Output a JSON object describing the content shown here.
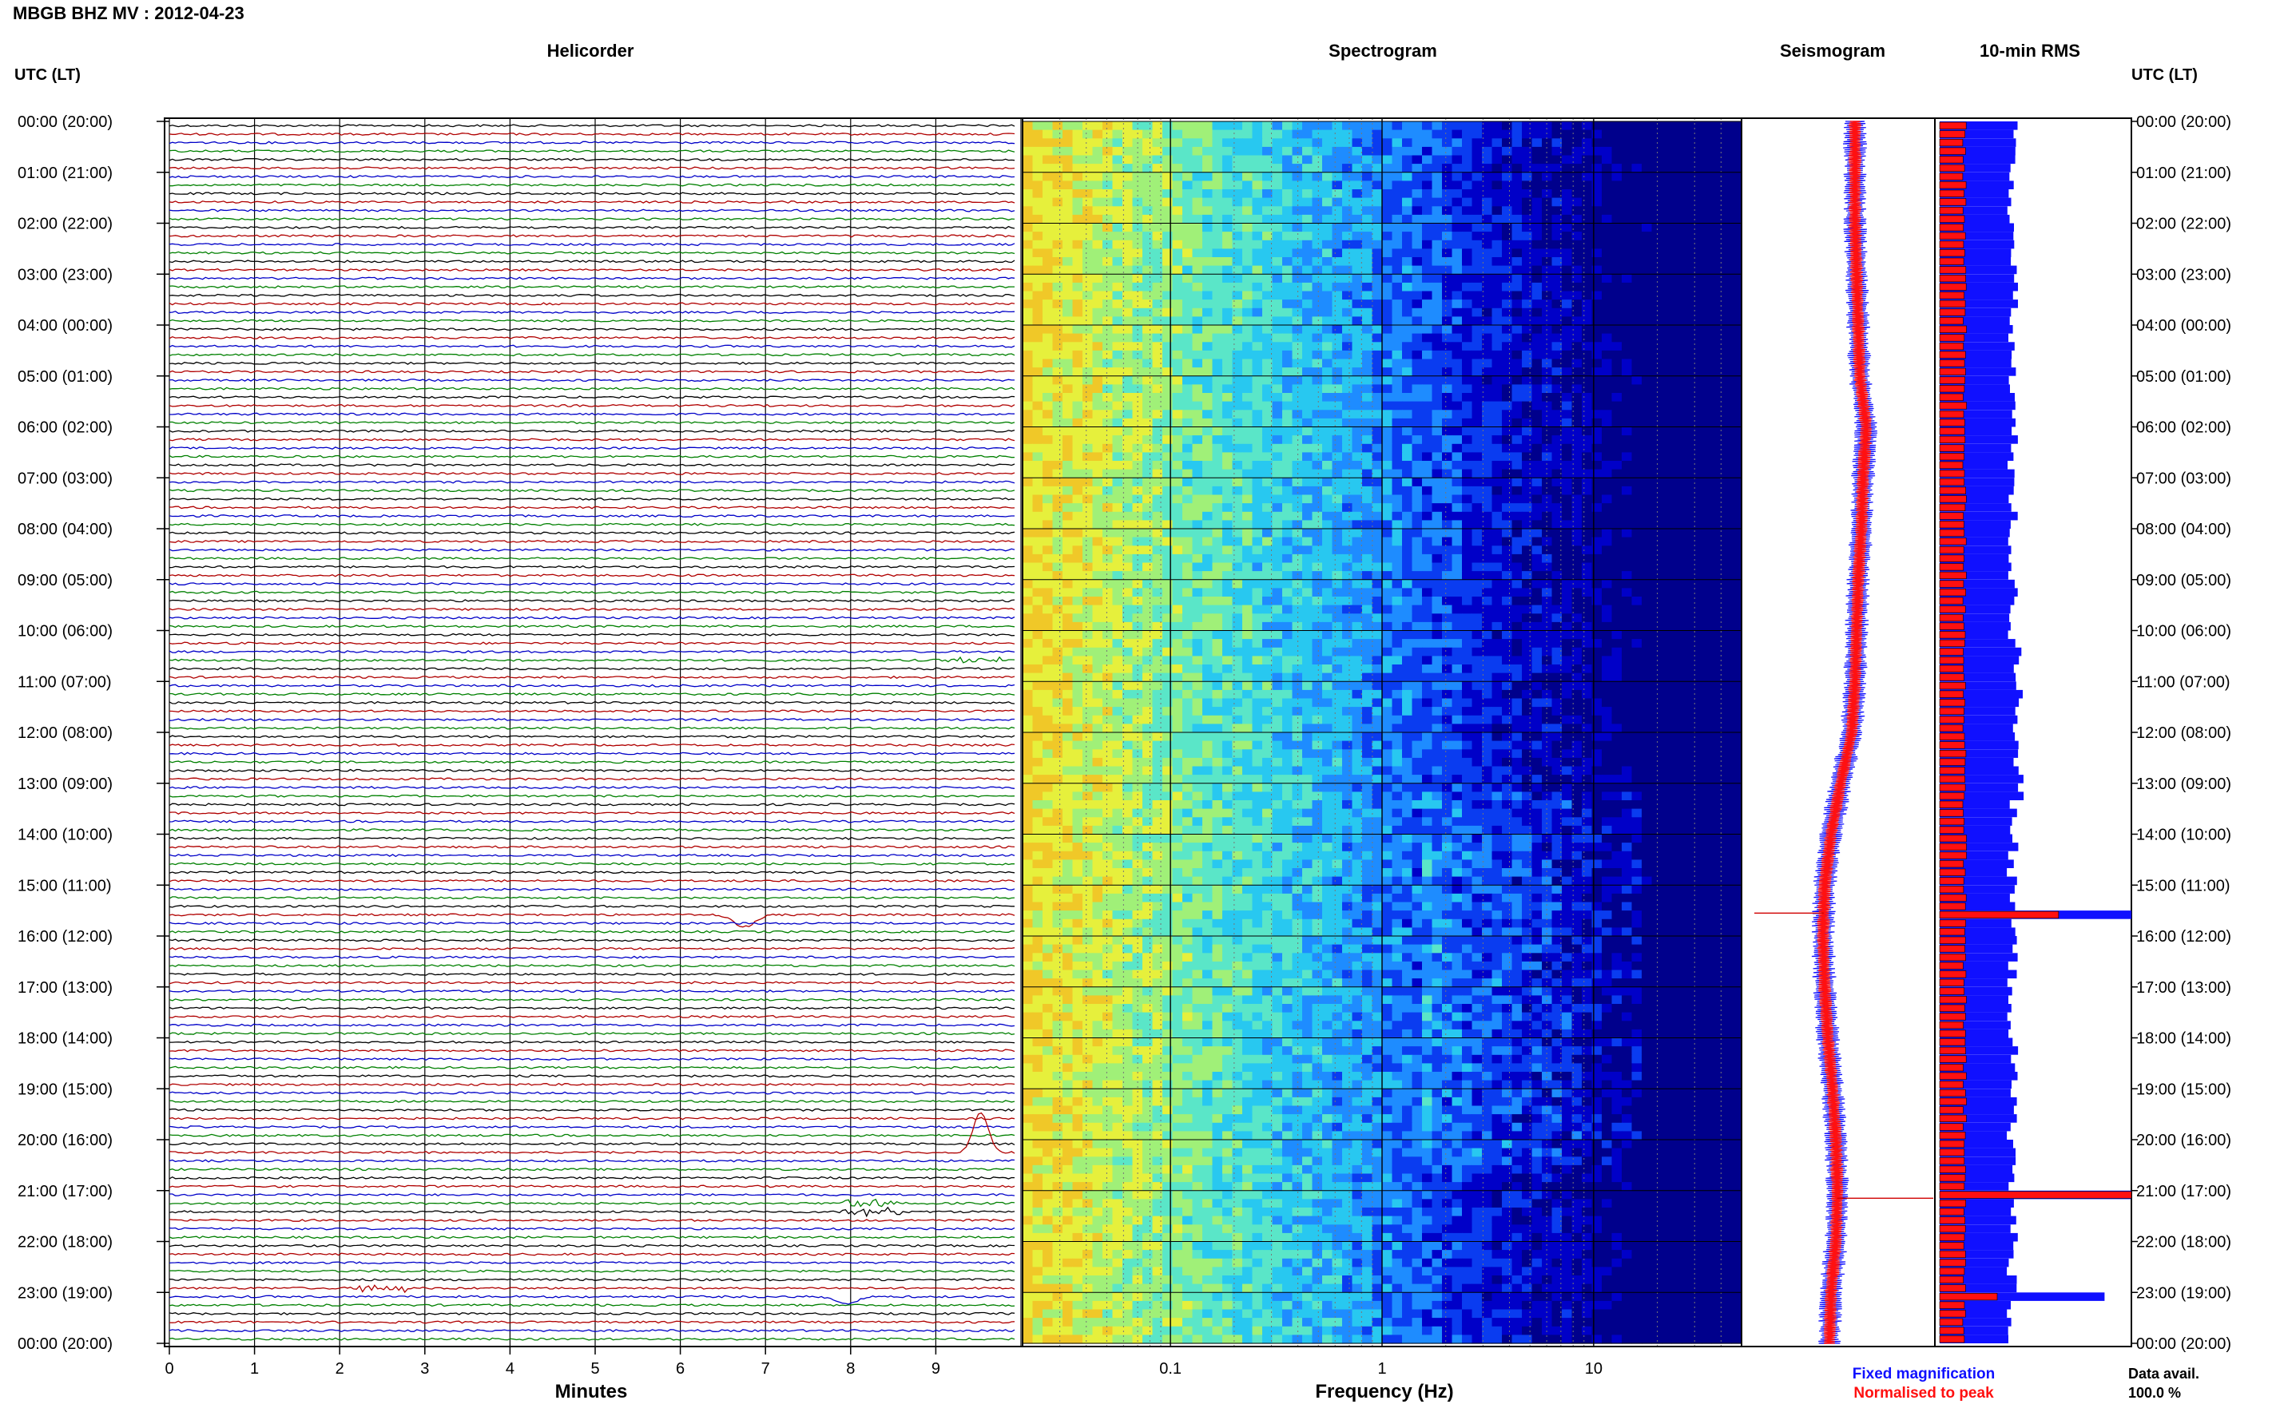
{
  "header": {
    "title": "MBGB BHZ MV : 2012-04-23"
  },
  "panels": {
    "helicorder_title": "Helicorder",
    "spectrogram_title": "Spectrogram",
    "seismogram_title": "Seismogram",
    "rms_title": "10-min RMS"
  },
  "axes": {
    "left_time_label": "UTC (LT)",
    "right_time_label": "UTC (LT)",
    "minutes_label": "Minutes",
    "frequency_label": "Frequency (Hz)"
  },
  "legend": {
    "fixed_label": "Fixed magnification",
    "normalised_label": "Normalised to peak",
    "fixed_color": "#1010ff",
    "normalised_color": "#ff1010"
  },
  "availability": {
    "label": "Data avail.",
    "value": "100.0 %"
  },
  "chart_data": [
    {
      "type": "line",
      "name": "helicorder",
      "title": "Helicorder",
      "xlabel": "Minutes",
      "xlim": [
        0,
        10
      ],
      "x_ticks": [
        "0",
        "1",
        "2",
        "3",
        "4",
        "5",
        "6",
        "7",
        "8",
        "9"
      ],
      "trace_minutes": 10,
      "trace_count": 144,
      "trace_colors": [
        "#000000",
        "#b00000",
        "#0000c8",
        "#008000"
      ],
      "grid": true,
      "time_labels_left": [
        "00:00 (20:00)",
        "01:00 (21:00)",
        "02:00 (22:00)",
        "03:00 (23:00)",
        "04:00 (00:00)",
        "05:00 (01:00)",
        "06:00 (02:00)",
        "07:00 (03:00)",
        "08:00 (04:00)",
        "09:00 (05:00)",
        "10:00 (06:00)",
        "11:00 (07:00)",
        "12:00 (08:00)",
        "13:00 (09:00)",
        "14:00 (10:00)",
        "15:00 (11:00)",
        "16:00 (12:00)",
        "17:00 (13:00)",
        "18:00 (14:00)",
        "19:00 (15:00)",
        "20:00 (16:00)",
        "21:00 (17:00)",
        "22:00 (18:00)",
        "23:00 (19:00)",
        "00:00 (20:00)"
      ],
      "events": [
        {
          "hour": 0.0,
          "minute": 9.5,
          "amplitude": 0
        },
        {
          "hour": 10.55,
          "minute": 9.5,
          "amplitude": 1.0,
          "kind": "burst"
        },
        {
          "hour": 15.5,
          "minute": 6.8,
          "amplitude": 2.5,
          "kind": "dip"
        },
        {
          "hour": 20.2,
          "minute": 9.6,
          "amplitude": 5.0,
          "kind": "spike"
        },
        {
          "hour": 21.25,
          "minute": 8.3,
          "amplitude": 1.2,
          "kind": "burst"
        },
        {
          "hour": 22.85,
          "minute": 2.5,
          "amplitude": 1.2,
          "kind": "burst"
        },
        {
          "hour": 23.0,
          "minute": 8.0,
          "amplitude": 1.5,
          "kind": "dip"
        }
      ]
    },
    {
      "type": "heatmap",
      "name": "spectrogram",
      "title": "Spectrogram",
      "xlabel": "Frequency (Hz)",
      "xscale": "log",
      "xlim": [
        0.02,
        50
      ],
      "x_ticks": [
        "0.1",
        "1",
        "10"
      ],
      "y_rows": 144,
      "colormap": [
        "#00008c",
        "#0000c8",
        "#0a3cf0",
        "#1e8cff",
        "#28c8f0",
        "#5ae6c8",
        "#a0f078",
        "#e6f03c",
        "#f0c828"
      ],
      "note_bands": []
    },
    {
      "type": "line",
      "name": "seismogram",
      "title": "Seismogram",
      "series": [
        {
          "key": "fixed",
          "values": [
            1.0,
            1.0,
            1.0,
            1.05,
            1.1,
            1.15,
            1.35,
            1.25,
            1.2,
            1.1,
            1.05,
            1.0,
            0.9,
            0.55,
            0.25,
            0.05,
            0.0,
            0.05,
            0.15,
            0.3,
            0.4,
            0.45,
            0.4,
            0.25,
            0.2
          ]
        },
        {
          "key": "normalised",
          "values": [
            1.0,
            1.0,
            1.0,
            1.05,
            1.1,
            1.15,
            1.35,
            1.25,
            1.2,
            1.1,
            1.05,
            1.0,
            0.9,
            0.55,
            0.25,
            0.05,
            0.0,
            0.05,
            0.15,
            0.3,
            0.4,
            0.45,
            0.4,
            0.25,
            0.2
          ]
        }
      ],
      "ylim_hours": [
        0,
        24
      ]
    },
    {
      "type": "bar",
      "name": "rms_10min",
      "title": "10-min RMS",
      "orientation": "horizontal",
      "bar_count": 144,
      "fixed_base": 0.38,
      "normalised_base": 0.13,
      "spikes": [
        {
          "index": 93,
          "fixed": 1.0,
          "normalised": 0.62
        },
        {
          "index": 126,
          "fixed": 1.0,
          "normalised": 1.0
        },
        {
          "index": 138,
          "fixed": 0.86,
          "normalised": 0.3
        }
      ]
    }
  ]
}
